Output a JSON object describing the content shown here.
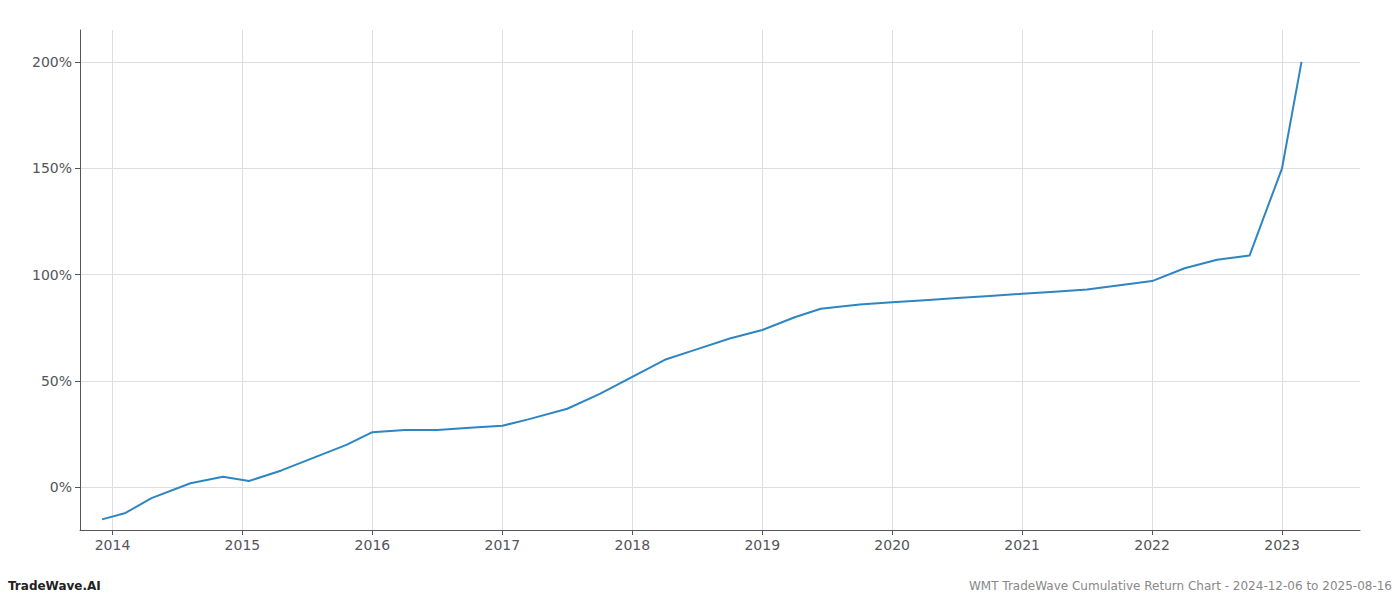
{
  "chart_data": {
    "type": "line",
    "x": [
      2013.92,
      2014.1,
      2014.3,
      2014.6,
      2014.85,
      2015.05,
      2015.3,
      2015.55,
      2015.8,
      2016.0,
      2016.25,
      2016.5,
      2016.75,
      2017.0,
      2017.2,
      2017.5,
      2017.75,
      2018.0,
      2018.25,
      2018.5,
      2018.75,
      2019.0,
      2019.25,
      2019.45,
      2019.75,
      2020.0,
      2020.25,
      2020.5,
      2020.75,
      2021.0,
      2021.25,
      2021.5,
      2021.75,
      2022.0,
      2022.25,
      2022.5,
      2022.75,
      2023.0,
      2023.15
    ],
    "values": [
      -15,
      -12,
      -5,
      2,
      5,
      3,
      8,
      14,
      20,
      26,
      27,
      27,
      28,
      29,
      32,
      37,
      44,
      52,
      60,
      65,
      70,
      74,
      80,
      84,
      86,
      87,
      88,
      89,
      90,
      91,
      92,
      93,
      95,
      97,
      103,
      107,
      109,
      150,
      200
    ],
    "color": "#2e86c1",
    "xlim": [
      2013.75,
      2023.6
    ],
    "xticks": [
      2014,
      2015,
      2016,
      2017,
      2018,
      2019,
      2020,
      2021,
      2022,
      2023
    ],
    "ylim": [
      -20,
      215
    ],
    "yticks": [
      {
        "value": 0,
        "label": "0%"
      },
      {
        "value": 50,
        "label": "50%"
      },
      {
        "value": 100,
        "label": "100%"
      },
      {
        "value": 150,
        "label": "150%"
      },
      {
        "value": 200,
        "label": "200%"
      }
    ],
    "grid": true,
    "annotations": [
      "TradeWave.AI",
      "WMT TradeWave Cumulative Return Chart - 2024-12-06 to 2025-08-16"
    ]
  }
}
